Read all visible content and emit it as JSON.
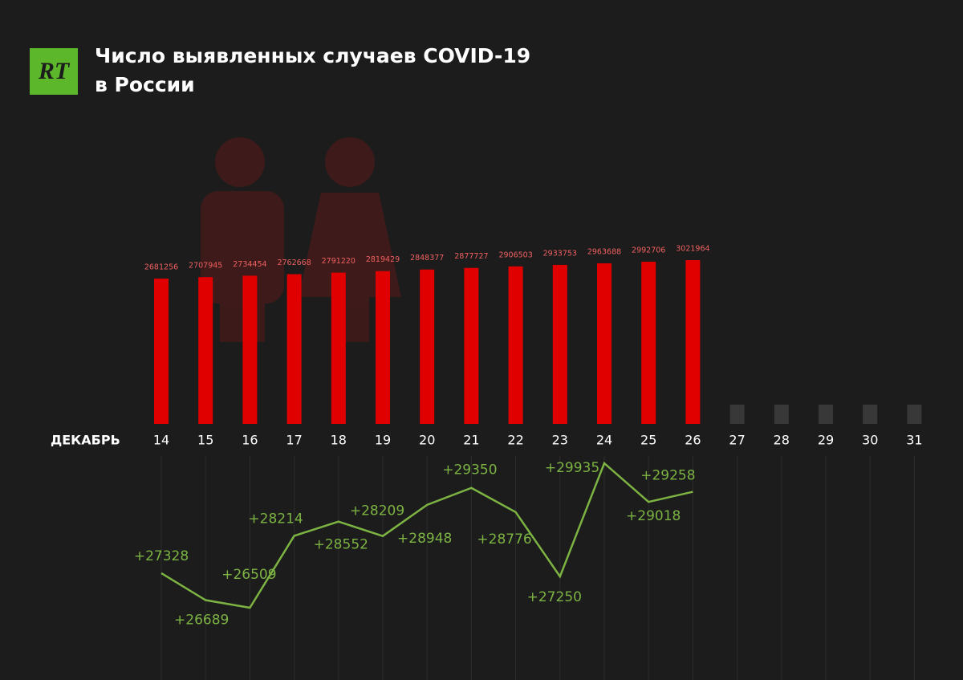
{
  "logo": "RT",
  "chart_data": {
    "type": "bar",
    "title": "Число выявленных случаев COVID-19 в России",
    "x_label": "ДЕКАБРЬ",
    "categories": [
      "14",
      "15",
      "16",
      "17",
      "18",
      "19",
      "20",
      "21",
      "22",
      "23",
      "24",
      "25",
      "26",
      "27",
      "28",
      "29",
      "30",
      "31"
    ],
    "series": [
      {
        "type": "bar",
        "color": "#e00000",
        "values": [
          2681256,
          2707945,
          2734454,
          2762668,
          2791220,
          2819429,
          2848377,
          2877727,
          2906503,
          2933753,
          2963688,
          2992706,
          3021964,
          null,
          null,
          null,
          null,
          null
        ]
      },
      {
        "type": "line",
        "color": "#7cb342",
        "values": [
          27328,
          26689,
          26509,
          28214,
          28552,
          28209,
          28948,
          29350,
          28776,
          27250,
          29935,
          29018,
          29258,
          null,
          null,
          null,
          null,
          null
        ],
        "value_labels": [
          "+27328",
          "+26689",
          "+26509",
          "+28214",
          "+28552",
          "+28209",
          "+28948",
          "+29350",
          "+28776",
          "+27250",
          "+29935",
          "+29018",
          "+29258",
          null,
          null,
          null,
          null,
          null
        ]
      }
    ]
  }
}
